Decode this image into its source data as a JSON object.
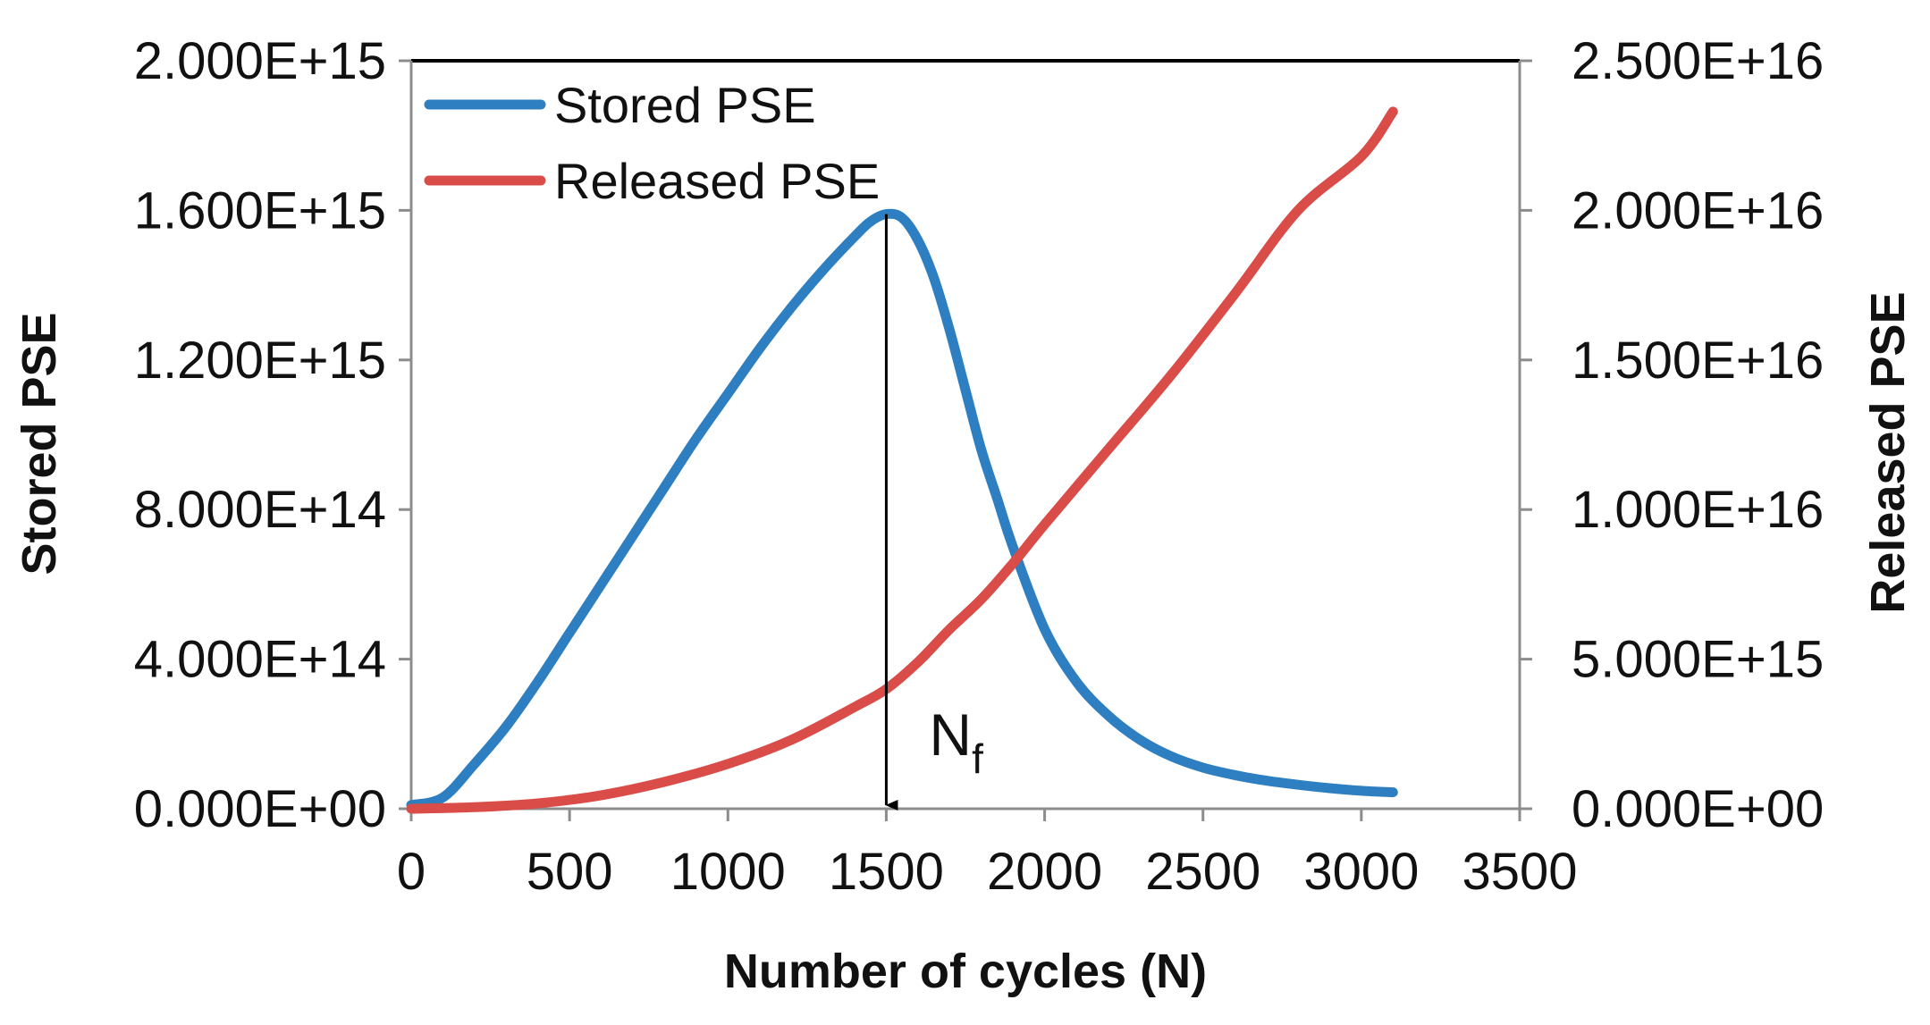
{
  "chart_data": {
    "type": "line",
    "title": "",
    "xlabel": "Number of cycles (N)",
    "ylabel": "Stored PSE",
    "y2label": "Released PSE",
    "xlim": [
      0,
      3500
    ],
    "ylim": [
      0,
      2000000000000000.0
    ],
    "y2lim": [
      0,
      2.5e+16
    ],
    "x_ticks": [
      0,
      500,
      1000,
      1500,
      2000,
      2500,
      3000,
      3500
    ],
    "x_tick_labels": [
      "0",
      "500",
      "1000",
      "1500",
      "2000",
      "2500",
      "3000",
      "3500"
    ],
    "y_ticks": [
      0,
      400000000000000.0,
      800000000000000.0,
      1200000000000000.0,
      1600000000000000.0,
      2000000000000000.0
    ],
    "y_tick_labels": [
      "0.000E+00",
      "4.000E+14",
      "8.000E+14",
      "1.200E+15",
      "1.600E+15",
      "2.000E+15"
    ],
    "y2_ticks": [
      0,
      5000000000000000.0,
      1e+16,
      1.5e+16,
      2e+16,
      2.5e+16
    ],
    "y2_tick_labels": [
      "0.000E+00",
      "5.000E+15",
      "1.000E+16",
      "1.500E+16",
      "2.000E+16",
      "2.500E+16"
    ],
    "grid": false,
    "legend_position": "top-left",
    "series": [
      {
        "name": "Stored PSE",
        "axis": "left",
        "color": "#2e7fc1",
        "x": [
          0,
          100,
          200,
          300,
          400,
          500,
          600,
          700,
          800,
          900,
          1000,
          1100,
          1200,
          1300,
          1400,
          1450,
          1500,
          1550,
          1600,
          1650,
          1700,
          1750,
          1800,
          1850,
          1900,
          2000,
          2100,
          2200,
          2300,
          2400,
          2500,
          2600,
          2700,
          2800,
          2900,
          3000,
          3100
        ],
        "y": [
          10000000000000.0,
          30000000000000.0,
          120000000000000.0,
          220000000000000.0,
          340000000000000.0,
          470000000000000.0,
          600000000000000.0,
          730000000000000.0,
          860000000000000.0,
          990000000000000.0,
          1110000000000000.0,
          1230000000000000.0,
          1340000000000000.0,
          1440000000000000.0,
          1530000000000000.0,
          1570000000000000.0,
          1590000000000000.0,
          1580000000000000.0,
          1520000000000000.0,
          1420000000000000.0,
          1280000000000000.0,
          1120000000000000.0,
          960000000000000.0,
          830000000000000.0,
          700000000000000.0,
          480000000000000.0,
          340000000000000.0,
          250000000000000.0,
          185000000000000.0,
          140000000000000.0,
          110000000000000.0,
          90000000000000.0,
          75000000000000.0,
          64000000000000.0,
          55000000000000.0,
          48000000000000.0,
          44000000000000.0
        ]
      },
      {
        "name": "Released PSE",
        "axis": "right",
        "color": "#d94c47",
        "x": [
          0,
          200,
          400,
          600,
          800,
          1000,
          1200,
          1400,
          1500,
          1600,
          1700,
          1800,
          1900,
          2000,
          2200,
          2400,
          2600,
          2800,
          3000,
          3100
        ],
        "y": [
          0.0,
          50000000000000.0,
          180000000000000.0,
          450000000000000.0,
          900000000000000.0,
          1500000000000000.0,
          2300000000000000.0,
          3400000000000000.0,
          4000000000000000.0,
          4900000000000000.0,
          6000000000000000.0,
          7000000000000000.0,
          8200000000000000.0,
          9500000000000000.0,
          1.2e+16,
          1.45e+16,
          1.72e+16,
          2e+16,
          2.18e+16,
          2.33e+16
        ]
      }
    ],
    "annotations": [
      {
        "type": "arrow",
        "text": "N",
        "subscript": "f",
        "x": 1500,
        "y_from": 1590000000000000.0,
        "y_to": 0
      }
    ]
  }
}
